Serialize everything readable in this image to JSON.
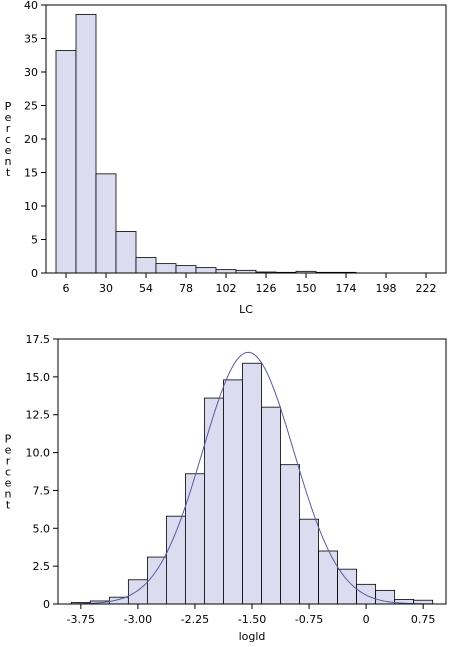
{
  "chart_data": [
    {
      "type": "bar",
      "xlabel": "LC",
      "ylabel": "Percent",
      "x_ticks": [
        6,
        30,
        54,
        78,
        102,
        126,
        150,
        174,
        198,
        222
      ],
      "x_tick_labels": [
        "6",
        "30",
        "54",
        "78",
        "102",
        "126",
        "150",
        "174",
        "198",
        "222"
      ],
      "y_ticks": [
        0,
        5,
        10,
        15,
        20,
        25,
        30,
        35,
        40
      ],
      "y_tick_labels": [
        "0",
        "5",
        "10",
        "15",
        "20",
        "25",
        "30",
        "35",
        "40"
      ],
      "xlim": [
        -6,
        234
      ],
      "ylim": [
        0,
        40
      ],
      "bin_width": 12,
      "bin_centers": [
        6,
        18,
        30,
        42,
        54,
        66,
        78,
        90,
        102,
        114,
        126,
        138,
        150,
        162,
        174
      ],
      "values": [
        33.2,
        38.6,
        14.8,
        6.2,
        2.3,
        1.4,
        1.1,
        0.8,
        0.5,
        0.4,
        0.15,
        0.1,
        0.25,
        0.1,
        0.1
      ],
      "bar_color": "#dcdcf0",
      "grid": false
    },
    {
      "type": "bar",
      "xlabel": "logld",
      "ylabel": "Percent",
      "x_ticks": [
        -3.75,
        -3.0,
        -2.25,
        -1.5,
        -0.75,
        0.0,
        0.75
      ],
      "x_tick_labels": [
        "-3.75",
        "-3.00",
        "-2.25",
        "-1.50",
        "-0.75",
        "0",
        "0.75"
      ],
      "y_ticks": [
        0,
        2.5,
        5.0,
        7.5,
        10.0,
        12.5,
        15.0,
        17.5
      ],
      "y_tick_labels": [
        "0",
        "2.5",
        "5.0",
        "7.5",
        "10.0",
        "12.5",
        "15.0",
        "17.5"
      ],
      "xlim": [
        -4.05,
        1.05
      ],
      "ylim": [
        0,
        17.5
      ],
      "bin_width": 0.25,
      "bin_centers": [
        -3.75,
        -3.5,
        -3.25,
        -3.0,
        -2.75,
        -2.5,
        -2.25,
        -2.0,
        -1.75,
        -1.5,
        -1.25,
        -1.0,
        -0.75,
        -0.5,
        -0.25,
        0.0,
        0.25,
        0.5,
        0.75
      ],
      "values": [
        0.1,
        0.2,
        0.45,
        1.6,
        3.1,
        5.8,
        8.6,
        13.6,
        14.8,
        15.9,
        13.0,
        9.2,
        5.6,
        3.5,
        2.3,
        1.3,
        0.9,
        0.3,
        0.25
      ],
      "bar_color": "#dcdcf0",
      "curve": {
        "type": "normal",
        "mean": -1.55,
        "sd": 0.6,
        "color": "#5a5aa0"
      },
      "grid": false
    }
  ]
}
